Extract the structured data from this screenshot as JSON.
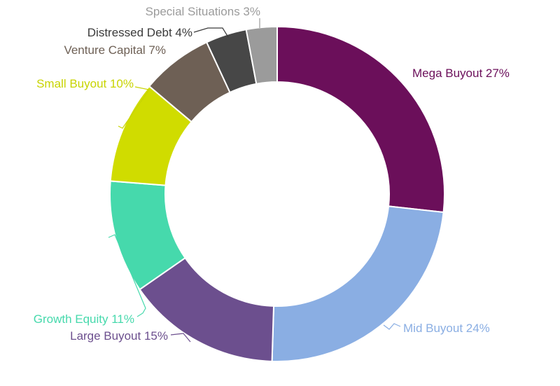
{
  "chart_data": {
    "type": "pie",
    "variant": "donut",
    "title": "",
    "legend": "none",
    "slices": [
      {
        "label": "Mega Buyout 27%",
        "category": "Mega Buyout",
        "value": 27,
        "color": "#6b0f5a"
      },
      {
        "label": "Mid Buyout 24%",
        "category": "Mid Buyout",
        "value": 24,
        "color": "#8aaee3"
      },
      {
        "label": "Large Buyout 15%",
        "category": "Large Buyout",
        "value": 15,
        "color": "#6c4f8e"
      },
      {
        "label": "Growth Equity 11%",
        "category": "Growth Equity",
        "value": 11,
        "color": "#46d9ac"
      },
      {
        "label": "Small Buyout 10%",
        "category": "Small Buyout",
        "value": 10,
        "color": "#d0dc00"
      },
      {
        "label": "Venture Capital 7%",
        "category": "Venture Capital",
        "value": 7,
        "color": "#6e6055"
      },
      {
        "label": "Distressed Debt 4%",
        "category": "Distressed Debt",
        "value": 4,
        "color": "#474747"
      },
      {
        "label": "Special Situations 3%",
        "category": "Special Situations",
        "value": 3,
        "color": "#9b9b9b"
      }
    ],
    "label_colors": {
      "Mega Buyout": "#6b0f5a",
      "Mid Buyout": "#8aaee3",
      "Large Buyout": "#6c4f8e",
      "Growth Equity": "#46d9ac",
      "Small Buyout": "#c8d400",
      "Venture Capital": "#6e6055",
      "Distressed Debt": "#3a3a3a",
      "Special Situations": "#9b9b9b"
    }
  }
}
